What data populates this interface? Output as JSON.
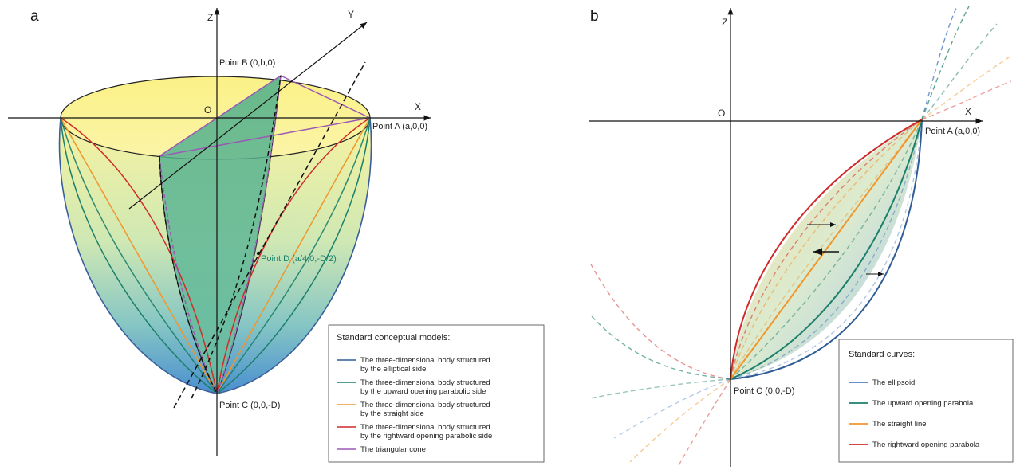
{
  "panel_a": {
    "letter": "a",
    "axes": {
      "z": "Z",
      "y": "Y",
      "x": "X",
      "origin": "O"
    },
    "points": {
      "a": "Point A (a,0,0)",
      "b": "Point B (0,b,0)",
      "c": "Point C (0,0,-D)",
      "d": "Point D (a/4,0,-D/2)"
    },
    "legend": {
      "title": "Standard conceptual models:",
      "items": [
        {
          "line1": "The three-dimensional body structured",
          "line2": "by the elliptical side",
          "color": "#2f5d96"
        },
        {
          "line1": "The three-dimensional body structured",
          "line2": "by the upward opening parabolic side",
          "color": "#1b7f6a"
        },
        {
          "line1": "The three-dimensional body structured",
          "line2": "by the straight side",
          "color": "#f0962b"
        },
        {
          "line1": "The three-dimensional body structured",
          "line2": "by the rightward opening parabolic side",
          "color": "#d12a2a"
        },
        {
          "line1": "The triangular cone",
          "line2": "",
          "color": "#9b59b6"
        }
      ]
    }
  },
  "panel_b": {
    "letter": "b",
    "axes": {
      "z": "Z",
      "x": "X",
      "origin": "O"
    },
    "points": {
      "a": "Point A (a,0,0)",
      "c": "Point C (0,0,-D)"
    },
    "legend": {
      "title": "Standard curves:",
      "items": [
        {
          "label": "The ellipsoid",
          "color": "#4f7fc0"
        },
        {
          "label": "The upward opening parabola",
          "color": "#1b7f6a"
        },
        {
          "label": "The straight line",
          "color": "#f0962b"
        },
        {
          "label": "The rightward opening parabola",
          "color": "#d12a2a"
        }
      ]
    }
  }
}
